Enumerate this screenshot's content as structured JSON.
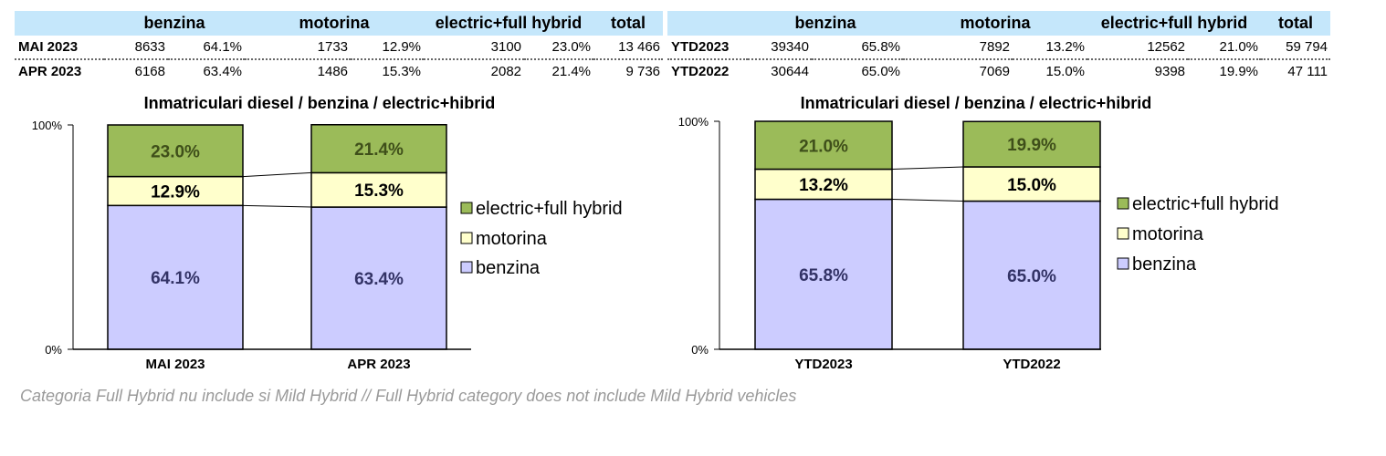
{
  "tables": [
    {
      "headers": [
        "",
        "benzina",
        "",
        "motorina",
        "",
        "electric+full hybrid",
        "",
        "total"
      ],
      "rows": [
        [
          "MAI 2023",
          "8633",
          "64.1%",
          "1733",
          "12.9%",
          "3100",
          "23.0%",
          "13 466"
        ],
        [
          "APR 2023",
          "6168",
          "63.4%",
          "1486",
          "15.3%",
          "2082",
          "21.4%",
          "9 736"
        ]
      ]
    },
    {
      "headers": [
        "",
        "benzina",
        "",
        "motorina",
        "",
        "electric+full hybrid",
        "",
        "total"
      ],
      "rows": [
        [
          "YTD2023",
          "39340",
          "65.8%",
          "7892",
          "13.2%",
          "12562",
          "21.0%",
          "59 794"
        ],
        [
          "YTD2022",
          "30644",
          "65.0%",
          "7069",
          "15.0%",
          "9398",
          "19.9%",
          "47 111"
        ]
      ]
    }
  ],
  "chart_data": [
    {
      "type": "bar",
      "stacked": true,
      "title": "Inmatriculari diesel / benzina / electric+hibrid",
      "categories": [
        "MAI 2023",
        "APR 2023"
      ],
      "series": [
        {
          "name": "benzina",
          "values": [
            64.1,
            63.4
          ],
          "labels": [
            "64.1%",
            "63.4%"
          ]
        },
        {
          "name": "motorina",
          "values": [
            12.9,
            15.3
          ],
          "labels": [
            "12.9%",
            "15.3%"
          ]
        },
        {
          "name": "electric+full hybrid",
          "values": [
            23.0,
            21.4
          ],
          "labels": [
            "23.0%",
            "21.4%"
          ]
        }
      ],
      "y_ticks": [
        "0%",
        "100%"
      ],
      "ylim": [
        0,
        100
      ],
      "legend": "right"
    },
    {
      "type": "bar",
      "stacked": true,
      "title": "Inmatriculari diesel / benzina / electric+hibrid",
      "categories": [
        "YTD2023",
        "YTD2022"
      ],
      "series": [
        {
          "name": "benzina",
          "values": [
            65.8,
            65.0
          ],
          "labels": [
            "65.8%",
            "65.0%"
          ]
        },
        {
          "name": "motorina",
          "values": [
            13.2,
            15.0
          ],
          "labels": [
            "13.2%",
            "15.0%"
          ]
        },
        {
          "name": "electric+full hybrid",
          "values": [
            21.0,
            19.9
          ],
          "labels": [
            "21.0%",
            "19.9%"
          ]
        }
      ],
      "y_ticks": [
        "0%",
        "100%"
      ],
      "ylim": [
        0,
        100
      ],
      "legend": "right"
    }
  ],
  "colors": {
    "benzina": "#ccccff",
    "motorina": "#ffffcc",
    "electric+full hybrid": "#9bbb59",
    "label_benzina": "#333366",
    "label_motorina": "#000000",
    "label_electric": "#3f4f1a",
    "table_header": "#c5e7fb"
  },
  "footnote": "Categoria Full Hybrid nu include si Mild Hybrid // Full Hybrid category does not include Mild Hybrid vehicles"
}
